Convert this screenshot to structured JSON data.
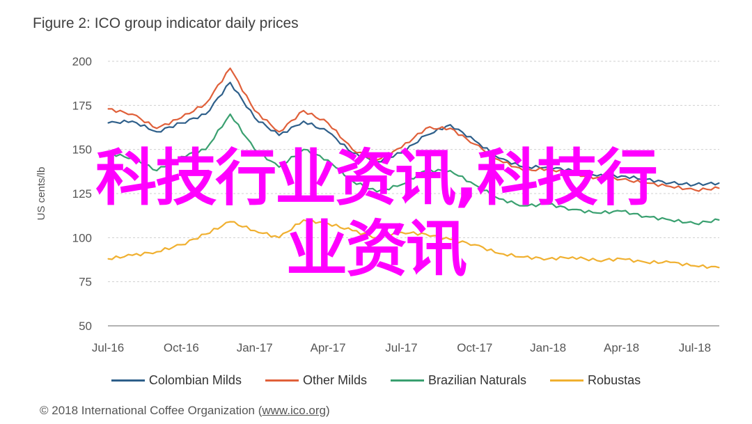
{
  "chart_data": {
    "type": "line",
    "title": "Figure 2: ICO group indicator daily prices",
    "ylabel": "US cents/lb",
    "ylim": [
      50,
      200
    ],
    "yticks": [
      50,
      75,
      100,
      125,
      150,
      175,
      200
    ],
    "x": [
      "Jul-16",
      "Aug-16",
      "Sep-16",
      "Oct-16",
      "Nov-16",
      "Dec-16",
      "Jan-17",
      "Feb-17",
      "Mar-17",
      "Apr-17",
      "May-17",
      "Jun-17",
      "Jul-17",
      "Aug-17",
      "Sep-17",
      "Oct-17",
      "Nov-17",
      "Dec-17",
      "Jan-18",
      "Feb-18",
      "Mar-18",
      "Apr-18",
      "May-18",
      "Jun-18",
      "Jul-18",
      "Aug-18"
    ],
    "xtick_labels": [
      "Jul-16",
      "Oct-16",
      "Jan-17",
      "Apr-17",
      "Jul-17",
      "Oct-17",
      "Jan-18",
      "Apr-18",
      "Jul-18"
    ],
    "grid": true,
    "legend_position": "bottom",
    "series": [
      {
        "name": "Colombian Milds",
        "color": "#2e5f8a",
        "values": [
          165,
          166,
          160,
          165,
          170,
          188,
          168,
          158,
          166,
          160,
          148,
          143,
          148,
          158,
          164,
          155,
          145,
          140,
          140,
          138,
          135,
          135,
          133,
          131,
          130,
          131
        ]
      },
      {
        "name": "Other Milds",
        "color": "#e0603a",
        "values": [
          173,
          170,
          162,
          168,
          176,
          196,
          172,
          160,
          172,
          165,
          150,
          144,
          151,
          162,
          162,
          153,
          144,
          138,
          139,
          136,
          134,
          133,
          131,
          129,
          127,
          128
        ]
      },
      {
        "name": "Brazilian Naturals",
        "color": "#3aa070",
        "values": [
          148,
          145,
          138,
          146,
          150,
          170,
          150,
          140,
          150,
          144,
          132,
          126,
          130,
          138,
          138,
          130,
          122,
          118,
          119,
          116,
          114,
          115,
          112,
          110,
          108,
          110
        ]
      },
      {
        "name": "Robustas",
        "color": "#f0b030",
        "values": [
          88,
          90,
          92,
          96,
          102,
          109,
          104,
          100,
          110,
          108,
          104,
          100,
          103,
          102,
          99,
          96,
          91,
          89,
          88,
          89,
          87,
          88,
          86,
          86,
          84,
          83
        ]
      }
    ]
  },
  "legend": [
    {
      "label": "Colombian Milds",
      "color": "#2e5f8a"
    },
    {
      "label": "Other Milds",
      "color": "#e0603a"
    },
    {
      "label": "Brazilian Naturals",
      "color": "#3aa070"
    },
    {
      "label": "Robustas",
      "color": "#f0b030"
    }
  ],
  "source": {
    "prefix": "© 2018 International Coffee Organization (",
    "link": "www.ico.org",
    "suffix": ")"
  },
  "overlay": {
    "line1": "科技行业资讯,科技行",
    "line2": "业资讯"
  }
}
